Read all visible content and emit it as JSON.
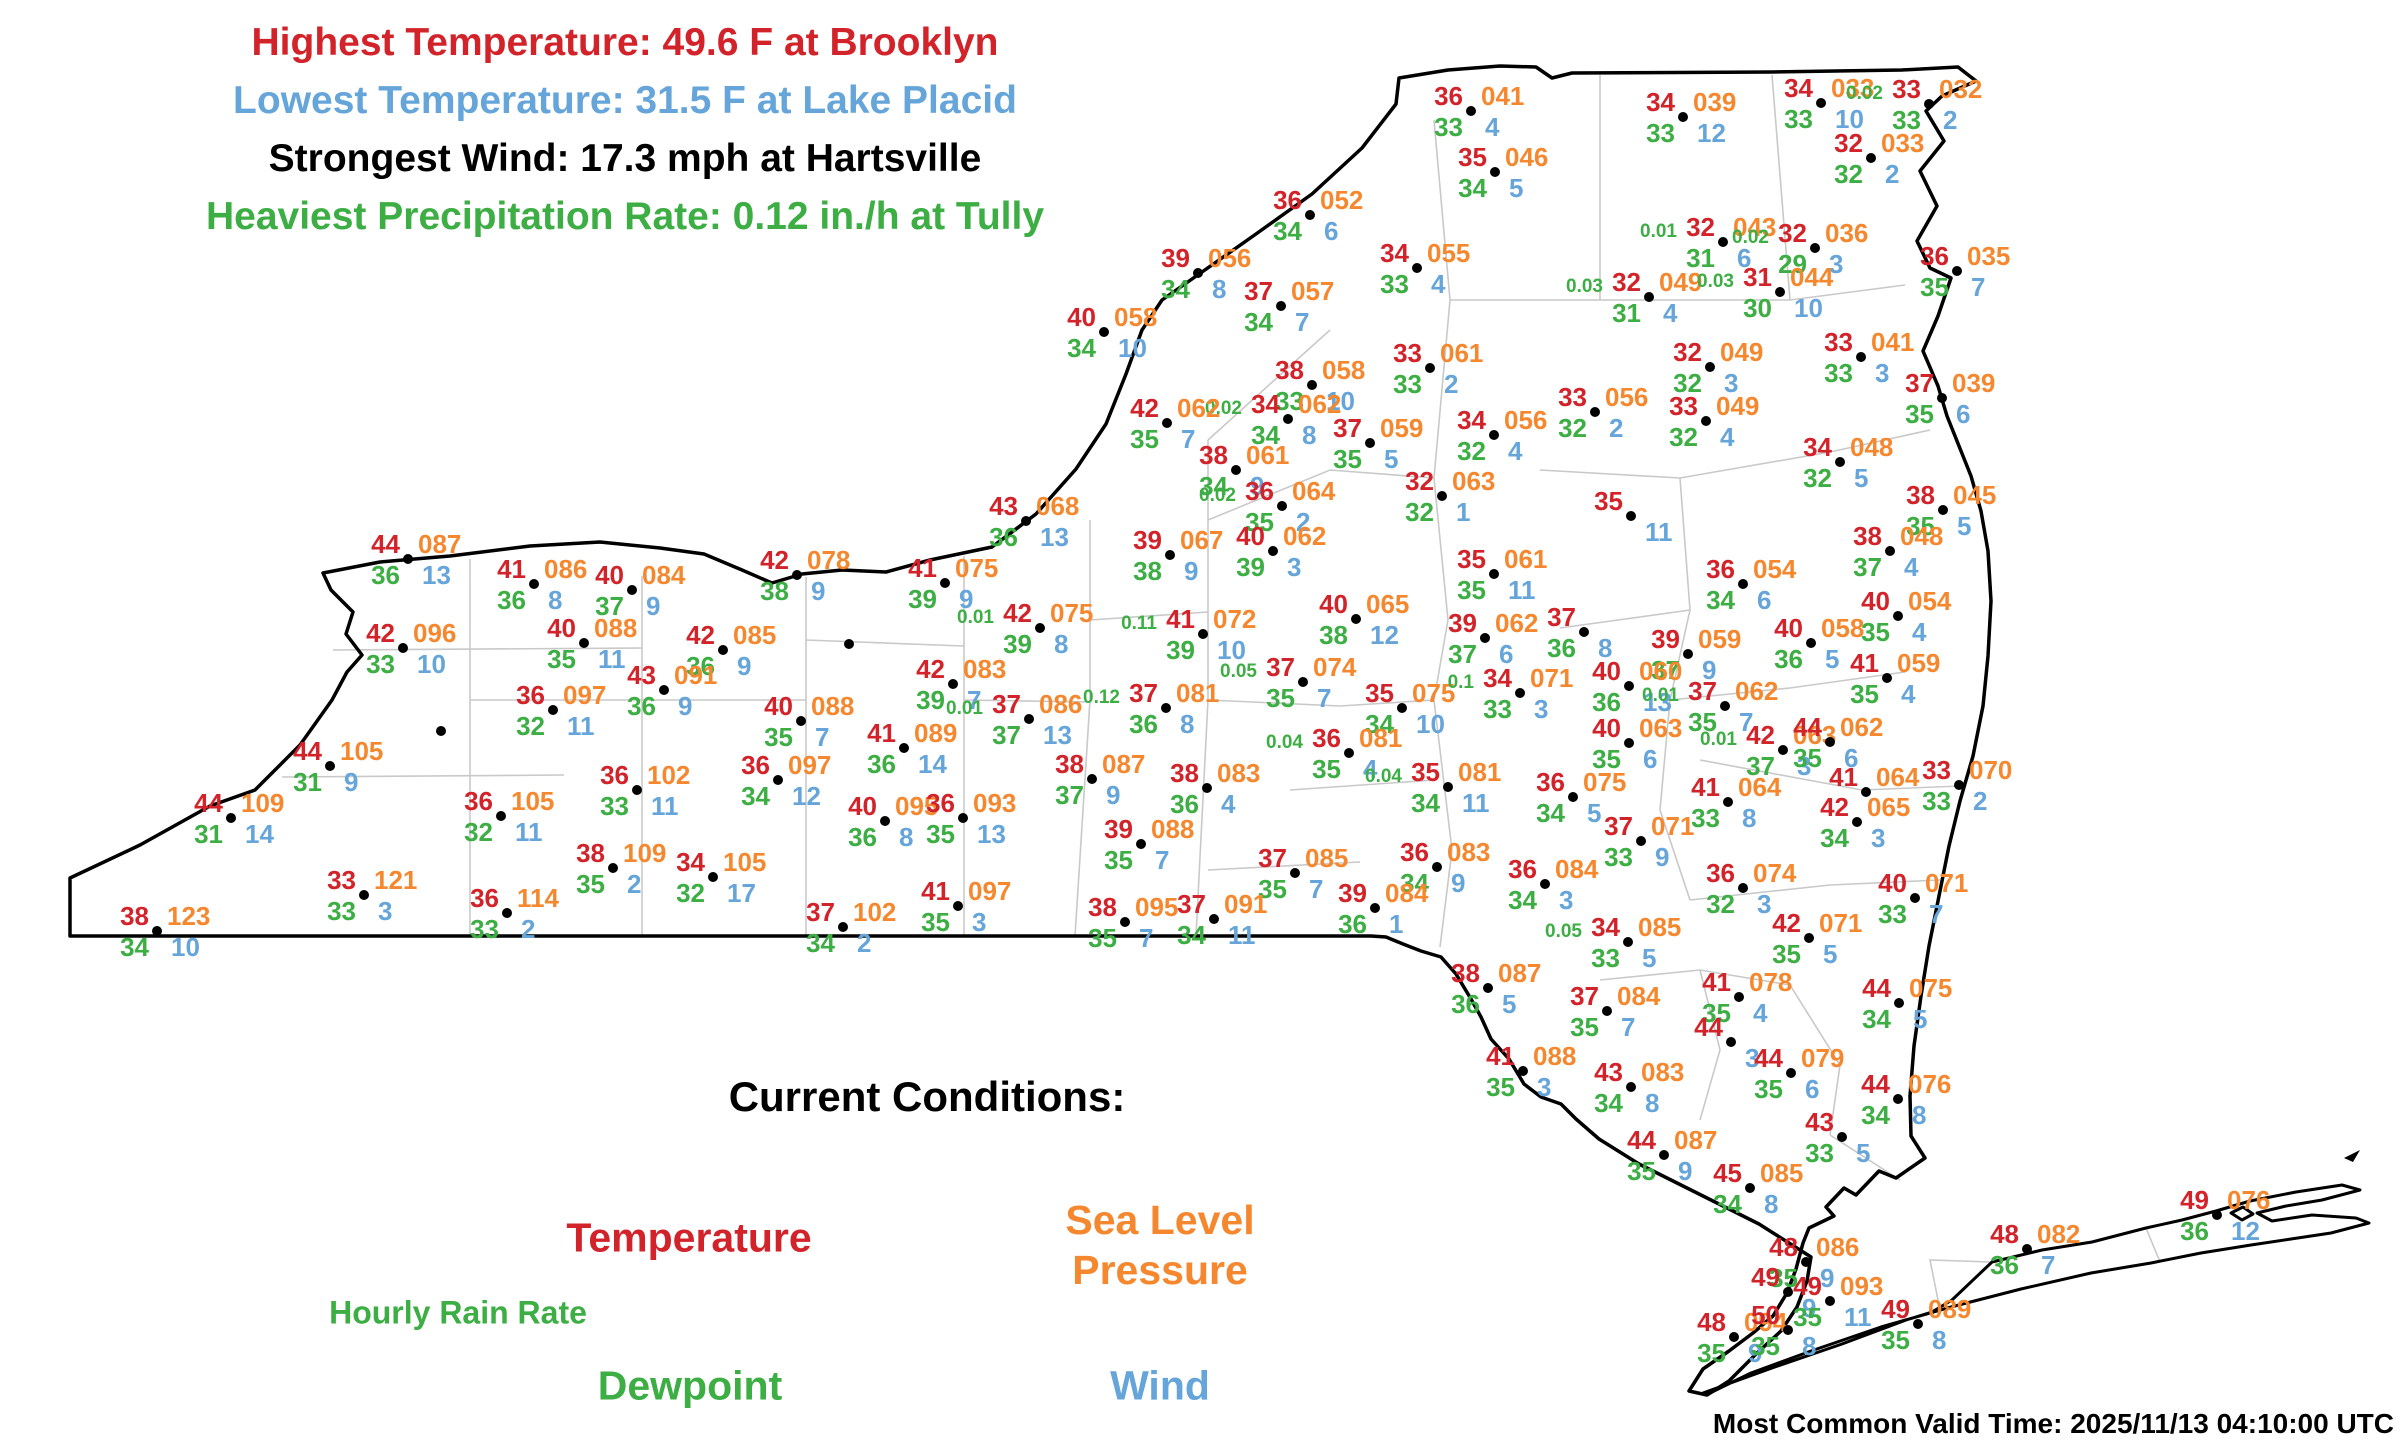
{
  "title": "New York current conditions surface map",
  "colors": {
    "temperature": "#d2232a",
    "pressure": "#f5882e",
    "dewpoint_rain": "#3cae44",
    "wind": "#66a5d9",
    "text": "#000000"
  },
  "header": {
    "highest_temperature": "Highest Temperature: 49.6 F at Brooklyn",
    "lowest_temperature": "Lowest Temperature: 31.5 F at Lake Placid",
    "strongest_wind": "Strongest Wind: 17.3 mph at Hartsville",
    "heaviest_precip": "Heaviest Precipitation Rate: 0.12 in./h at Tully"
  },
  "legend": {
    "title": "Current Conditions:",
    "temperature": "Temperature",
    "sea_level_line1": "Sea Level",
    "sea_level_line2": "Pressure",
    "hourly_rain_rate": "Hourly Rain Rate",
    "dewpoint": "Dewpoint",
    "wind": "Wind"
  },
  "footer": {
    "valid_time": "Most Common Valid Time: 2025/11/13 04:10:00 UTC"
  },
  "map": {
    "station_fields": [
      "x_px",
      "y_px",
      "temperature_f",
      "sea_level_pressure",
      "dewpoint_f",
      "wind_mph",
      "hourly_rain_rate_in"
    ],
    "stations": [
      [
        1471,
        111,
        "36",
        "041",
        "33",
        "4",
        ""
      ],
      [
        1495,
        172,
        "35",
        "046",
        "34",
        "5",
        ""
      ],
      [
        1683,
        117,
        "34",
        "039",
        "33",
        "12",
        ""
      ],
      [
        1821,
        103,
        "34",
        "033",
        "33",
        "10",
        ""
      ],
      [
        1929,
        104,
        "33",
        "032",
        "33",
        "2",
        "0.02"
      ],
      [
        1871,
        158,
        "32",
        "033",
        "32",
        "2",
        ""
      ],
      [
        1310,
        215,
        "36",
        "052",
        "34",
        "6",
        ""
      ],
      [
        1198,
        273,
        "39",
        "056",
        "34",
        "8",
        ""
      ],
      [
        1417,
        268,
        "34",
        "055",
        "33",
        "4",
        ""
      ],
      [
        1723,
        242,
        "32",
        "043",
        "31",
        "6",
        "0.01"
      ],
      [
        1815,
        248,
        "32",
        "036",
        "29",
        "3",
        "0.02"
      ],
      [
        1649,
        297,
        "32",
        "049",
        "31",
        "4",
        "0.03"
      ],
      [
        1780,
        292,
        "31",
        "044",
        "30",
        "10",
        "0.03"
      ],
      [
        1957,
        271,
        "36",
        "035",
        "35",
        "7",
        ""
      ],
      [
        1104,
        332,
        "40",
        "058",
        "34",
        "10",
        ""
      ],
      [
        1281,
        306,
        "37",
        "057",
        "34",
        "7",
        ""
      ],
      [
        1430,
        368,
        "33",
        "061",
        "33",
        "2",
        ""
      ],
      [
        1710,
        367,
        "32",
        "049",
        "32",
        "3",
        ""
      ],
      [
        1861,
        357,
        "33",
        "041",
        "33",
        "3",
        ""
      ],
      [
        1942,
        398,
        "37",
        "039",
        "35",
        "6",
        ""
      ],
      [
        1312,
        385,
        "38",
        "058",
        "33",
        "10",
        ""
      ],
      [
        1288,
        419,
        "34",
        "062",
        "34",
        "8",
        "0.02"
      ],
      [
        1167,
        423,
        "42",
        "062",
        "35",
        "7",
        ""
      ],
      [
        1370,
        443,
        "37",
        "059",
        "35",
        "5",
        ""
      ],
      [
        1494,
        435,
        "34",
        "056",
        "32",
        "4",
        ""
      ],
      [
        1595,
        412,
        "33",
        "056",
        "32",
        "2",
        ""
      ],
      [
        1706,
        421,
        "33",
        "049",
        "32",
        "4",
        ""
      ],
      [
        1236,
        470,
        "38",
        "061",
        "34",
        "9",
        ""
      ],
      [
        1282,
        506,
        "36",
        "064",
        "35",
        "2",
        "0.02"
      ],
      [
        1442,
        496,
        "32",
        "063",
        "32",
        "1",
        ""
      ],
      [
        1840,
        462,
        "34",
        "048",
        "32",
        "5",
        ""
      ],
      [
        1943,
        510,
        "38",
        "045",
        "35",
        "5",
        ""
      ],
      [
        1631,
        516,
        "35",
        "",
        "",
        "11",
        ""
      ],
      [
        1170,
        555,
        "39",
        "067",
        "38",
        "9",
        ""
      ],
      [
        1273,
        551,
        "40",
        "062",
        "39",
        "3",
        ""
      ],
      [
        1494,
        574,
        "35",
        "061",
        "35",
        "11",
        ""
      ],
      [
        1356,
        619,
        "40",
        "065",
        "38",
        "12",
        ""
      ],
      [
        1890,
        551,
        "38",
        "048",
        "37",
        "4",
        ""
      ],
      [
        1743,
        584,
        "36",
        "054",
        "34",
        "6",
        ""
      ],
      [
        1898,
        616,
        "40",
        "054",
        "35",
        "4",
        ""
      ],
      [
        1811,
        643,
        "40",
        "058",
        "36",
        "5",
        ""
      ],
      [
        1887,
        678,
        "41",
        "059",
        "35",
        "4",
        ""
      ],
      [
        1485,
        638,
        "39",
        "062",
        "37",
        "6",
        ""
      ],
      [
        1584,
        632,
        "37",
        "",
        "36",
        "8",
        ""
      ],
      [
        1688,
        654,
        "39",
        "059",
        "37",
        "9",
        ""
      ],
      [
        1629,
        686,
        "40",
        "060",
        "36",
        "13",
        ""
      ],
      [
        1629,
        743,
        "40",
        "063",
        "35",
        "6",
        ""
      ],
      [
        1725,
        706,
        "37",
        "062",
        "35",
        "7",
        "0.01"
      ],
      [
        1783,
        750,
        "42",
        "063",
        "37",
        "3",
        "0.01"
      ],
      [
        1830,
        742,
        "44",
        "062",
        "35",
        "6",
        ""
      ],
      [
        1728,
        802,
        "41",
        "064",
        "33",
        "8",
        ""
      ],
      [
        1866,
        792,
        "41",
        "064",
        "",
        "",
        ""
      ],
      [
        1857,
        822,
        "42",
        "065",
        "34",
        "3",
        ""
      ],
      [
        1959,
        785,
        "33",
        "070",
        "33",
        "2",
        ""
      ],
      [
        1573,
        797,
        "36",
        "075",
        "34",
        "5",
        ""
      ],
      [
        1641,
        841,
        "37",
        "071",
        "33",
        "9",
        ""
      ],
      [
        1743,
        888,
        "36",
        "074",
        "32",
        "3",
        ""
      ],
      [
        1915,
        898,
        "40",
        "071",
        "33",
        "7",
        ""
      ],
      [
        1809,
        938,
        "42",
        "071",
        "35",
        "5",
        ""
      ],
      [
        1628,
        942,
        "34",
        "085",
        "33",
        "5",
        "0.05"
      ],
      [
        1545,
        884,
        "36",
        "084",
        "34",
        "3",
        ""
      ],
      [
        1402,
        708,
        "35",
        "075",
        "34",
        "10",
        ""
      ],
      [
        1520,
        693,
        "34",
        "071",
        "33",
        "3",
        "0.1"
      ],
      [
        1349,
        753,
        "36",
        "081",
        "35",
        "4",
        "0.04"
      ],
      [
        1448,
        787,
        "35",
        "081",
        "34",
        "11",
        "0.04"
      ],
      [
        1303,
        682,
        "37",
        "074",
        "35",
        "7",
        "0.05"
      ],
      [
        1203,
        634,
        "41",
        "072",
        "39",
        "10",
        "0.11"
      ],
      [
        1040,
        628,
        "42",
        "075",
        "39",
        "8",
        "0.01"
      ],
      [
        1166,
        708,
        "37",
        "081",
        "36",
        "8",
        "0.12"
      ],
      [
        1092,
        779,
        "38",
        "087",
        "37",
        "9",
        ""
      ],
      [
        1207,
        788,
        "38",
        "083",
        "36",
        "4",
        ""
      ],
      [
        1141,
        844,
        "39",
        "088",
        "35",
        "7",
        ""
      ],
      [
        1295,
        873,
        "37",
        "085",
        "35",
        "7",
        ""
      ],
      [
        1437,
        867,
        "36",
        "083",
        "34",
        "9",
        ""
      ],
      [
        1375,
        908,
        "39",
        "084",
        "36",
        "1",
        ""
      ],
      [
        1125,
        922,
        "38",
        "095",
        "35",
        "7",
        ""
      ],
      [
        1214,
        919,
        "37",
        "091",
        "34",
        "11",
        ""
      ],
      [
        1488,
        988,
        "38",
        "087",
        "36",
        "5",
        ""
      ],
      [
        1523,
        1071,
        "41",
        "088",
        "35",
        "3",
        ""
      ],
      [
        1607,
        1011,
        "37",
        "084",
        "35",
        "7",
        ""
      ],
      [
        1739,
        997,
        "41",
        "078",
        "35",
        "4",
        ""
      ],
      [
        1899,
        1003,
        "44",
        "075",
        "34",
        "5",
        ""
      ],
      [
        1731,
        1042,
        "44",
        "",
        "",
        "3",
        ""
      ],
      [
        1791,
        1073,
        "44",
        "079",
        "35",
        "6",
        ""
      ],
      [
        1898,
        1099,
        "44",
        "076",
        "34",
        "8",
        ""
      ],
      [
        1631,
        1087,
        "43",
        "083",
        "34",
        "8",
        ""
      ],
      [
        1842,
        1137,
        "43",
        "",
        "33",
        "5",
        ""
      ],
      [
        1664,
        1155,
        "44",
        "087",
        "35",
        "9",
        ""
      ],
      [
        1750,
        1188,
        "45",
        "085",
        "34",
        "8",
        ""
      ],
      [
        1806,
        1262,
        "48",
        "086",
        "35",
        "9",
        ""
      ],
      [
        1788,
        1292,
        "49",
        "",
        "",
        "9",
        ""
      ],
      [
        1830,
        1301,
        "49",
        "093",
        "35",
        "11",
        ""
      ],
      [
        1734,
        1337,
        "48",
        "094",
        "35",
        "9",
        ""
      ],
      [
        1788,
        1330,
        "50",
        "",
        "35",
        "8",
        ""
      ],
      [
        1918,
        1324,
        "49",
        "089",
        "35",
        "8",
        ""
      ],
      [
        2027,
        1249,
        "48",
        "082",
        "36",
        "7",
        ""
      ],
      [
        2217,
        1215,
        "49",
        "076",
        "36",
        "12",
        ""
      ],
      [
        1026,
        521,
        "43",
        "068",
        "36",
        "13",
        ""
      ],
      [
        797,
        575,
        "42",
        "078",
        "38",
        "9",
        ""
      ],
      [
        945,
        583,
        "41",
        "075",
        "39",
        "9",
        ""
      ],
      [
        632,
        590,
        "40",
        "084",
        "37",
        "9",
        ""
      ],
      [
        534,
        584,
        "41",
        "086",
        "36",
        "8",
        ""
      ],
      [
        408,
        559,
        "44",
        "087",
        "36",
        "13",
        ""
      ],
      [
        403,
        648,
        "42",
        "096",
        "33",
        "10",
        ""
      ],
      [
        584,
        643,
        "40",
        "088",
        "35",
        "11",
        ""
      ],
      [
        723,
        650,
        "42",
        "085",
        "36",
        "9",
        ""
      ],
      [
        664,
        690,
        "43",
        "091",
        "36",
        "9",
        ""
      ],
      [
        553,
        710,
        "36",
        "097",
        "32",
        "11",
        ""
      ],
      [
        953,
        684,
        "42",
        "083",
        "39",
        "7",
        ""
      ],
      [
        801,
        721,
        "40",
        "088",
        "35",
        "7",
        ""
      ],
      [
        1029,
        719,
        "37",
        "086",
        "37",
        "13",
        "0.01"
      ],
      [
        904,
        748,
        "41",
        "089",
        "36",
        "14",
        ""
      ],
      [
        637,
        790,
        "36",
        "102",
        "33",
        "11",
        ""
      ],
      [
        778,
        780,
        "36",
        "097",
        "34",
        "12",
        ""
      ],
      [
        885,
        821,
        "40",
        "095",
        "36",
        "8",
        ""
      ],
      [
        963,
        818,
        "36",
        "093",
        "35",
        "13",
        ""
      ],
      [
        330,
        766,
        "44",
        "105",
        "31",
        "9",
        ""
      ],
      [
        231,
        818,
        "44",
        "109",
        "31",
        "14",
        ""
      ],
      [
        364,
        895,
        "33",
        "121",
        "33",
        "3",
        ""
      ],
      [
        501,
        816,
        "36",
        "105",
        "32",
        "11",
        ""
      ],
      [
        507,
        913,
        "36",
        "114",
        "33",
        "2",
        ""
      ],
      [
        157,
        931,
        "38",
        "123",
        "34",
        "10",
        ""
      ],
      [
        613,
        868,
        "38",
        "109",
        "35",
        "2",
        ""
      ],
      [
        713,
        877,
        "34",
        "105",
        "32",
        "17",
        ""
      ],
      [
        843,
        927,
        "37",
        "102",
        "34",
        "2",
        ""
      ],
      [
        958,
        906,
        "41",
        "097",
        "35",
        "3",
        ""
      ],
      [
        849,
        644,
        "",
        "",
        "",
        "",
        ""
      ],
      [
        441,
        731,
        "",
        "",
        "",
        "",
        ""
      ]
    ]
  }
}
